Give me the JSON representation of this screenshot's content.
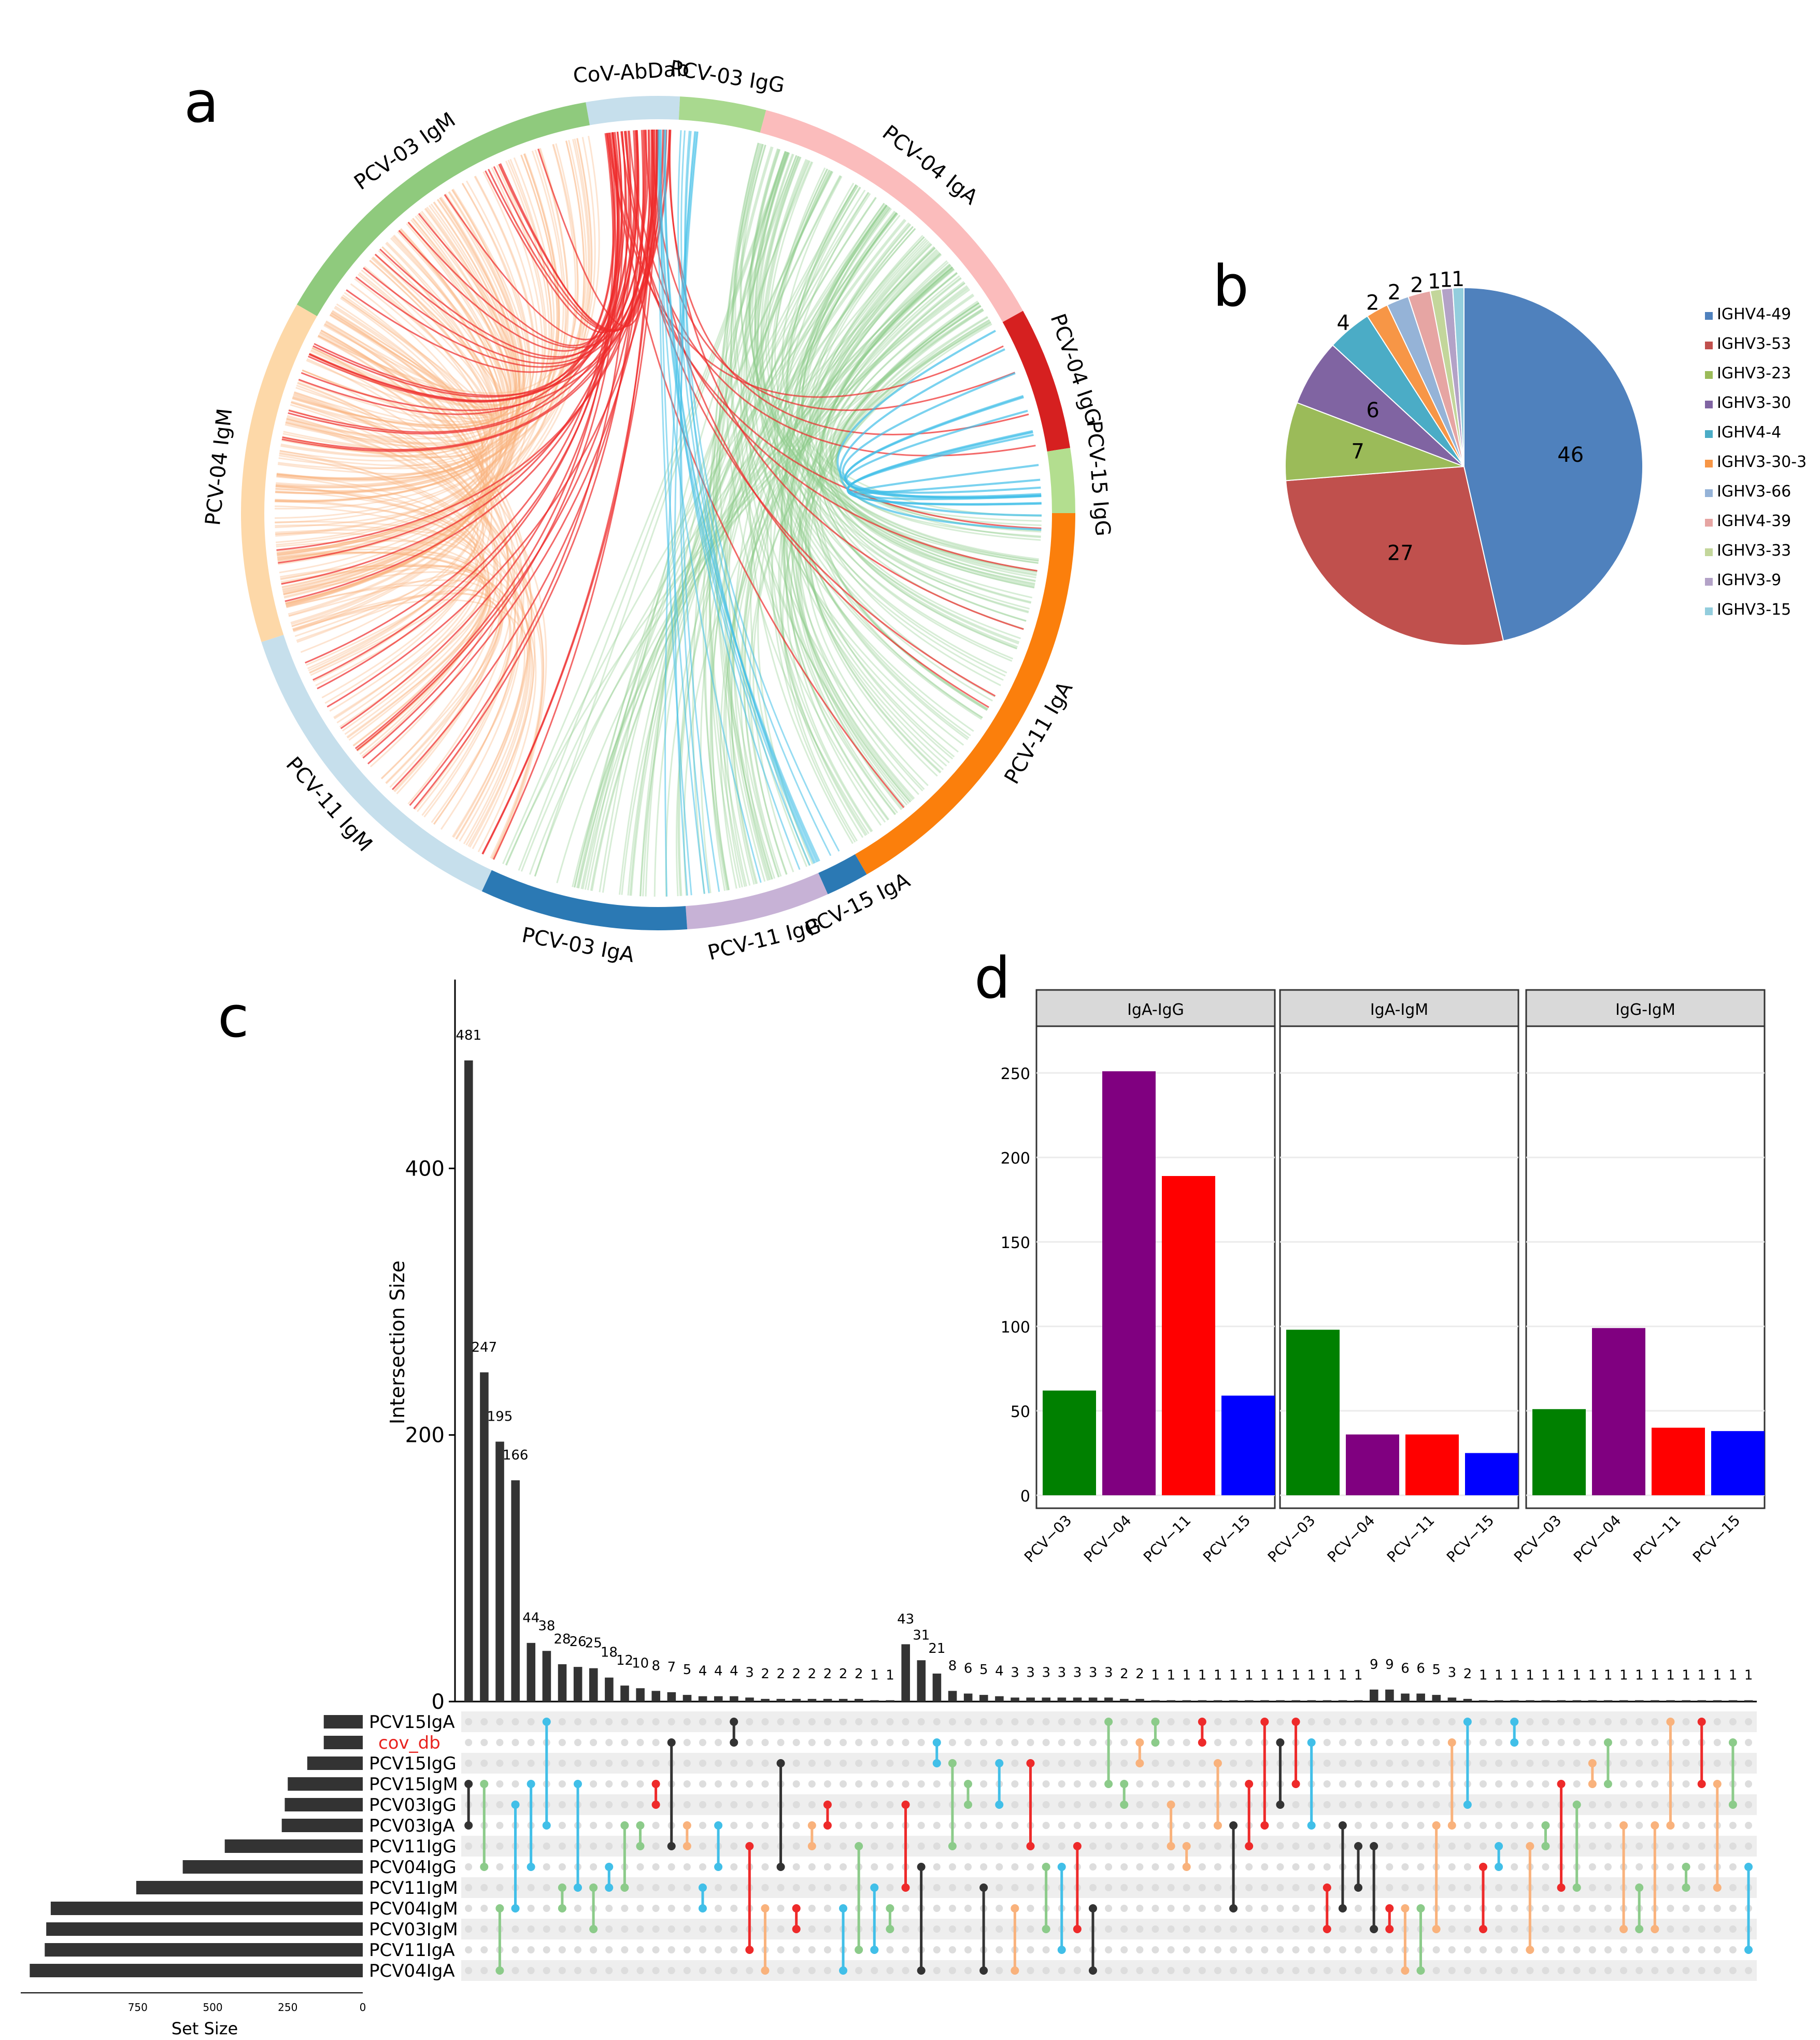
{
  "panel_labels": [
    "a",
    "b",
    "c",
    "d"
  ],
  "colors": {
    "axis": "#000000",
    "bar_dark": "#333333",
    "dot_empty": "#dddddd",
    "stripe": "#eeeeee",
    "strip_bg": "#d9d9d9",
    "grid": "#ebebeb",
    "cov_db_label": "#e8231f"
  },
  "chart_data": [
    {
      "panel": "a",
      "type": "chord",
      "sectors": [
        {
          "label": "CoV-AbDab",
          "color": "#c6dfec"
        },
        {
          "label": "PCV-03 IgG",
          "color": "#a9d98f"
        },
        {
          "label": "PCV-04 IgA",
          "color": "#fbbcbc"
        },
        {
          "label": "PCV-04 IgG",
          "color": "#d62020"
        },
        {
          "label": "PCV-15 IgG",
          "color": "#b3de8f"
        },
        {
          "label": "PCV-11 IgA",
          "color": "#fb7f0c"
        },
        {
          "label": "PCV-15 IgA",
          "color": "#2b79b4"
        },
        {
          "label": "PCV-11 IgG",
          "color": "#c7b2d6"
        },
        {
          "label": "PCV-03 IgA",
          "color": "#2b79b4"
        },
        {
          "label": "PCV-11 IgM",
          "color": "#c6dfec"
        },
        {
          "label": "PCV-04 IgM",
          "color": "#fdd8a8"
        },
        {
          "label": "PCV-03 IgM",
          "color": "#8fca7d"
        }
      ],
      "link_colors": [
        "#f9b27c",
        "#8ccb8a",
        "#ee2a2a",
        "#41bfe8"
      ]
    },
    {
      "panel": "b",
      "type": "pie",
      "categories": [
        "IGHV4-49",
        "IGHV3-53",
        "IGHV3-23",
        "IGHV3-30",
        "IGHV4-4",
        "IGHV3-30-3",
        "IGHV3-66",
        "IGHV4-39",
        "IGHV3-33",
        "IGHV3-9",
        "IGHV3-15"
      ],
      "values": [
        46,
        27,
        7,
        6,
        4,
        2,
        2,
        2,
        1,
        1,
        1
      ],
      "colors": [
        "#4f81bd",
        "#c0504d",
        "#9bbb59",
        "#8064a2",
        "#4bacc6",
        "#f79646",
        "#95b3d7",
        "#e6a5a3",
        "#c3d69b",
        "#b3a2c7",
        "#93cddd"
      ],
      "legend": "right"
    },
    {
      "panel": "c",
      "type": "bar",
      "ylabel": "Intersection Size",
      "ylim": [
        0,
        530
      ],
      "yticks": [
        0,
        200,
        400
      ],
      "values": [
        481,
        247,
        195,
        166,
        44,
        38,
        28,
        26,
        25,
        18,
        12,
        10,
        8,
        7,
        5,
        4,
        4,
        4,
        3,
        2,
        2,
        2,
        2,
        2,
        2,
        2,
        1,
        1,
        43,
        31,
        21,
        8,
        6,
        5,
        4,
        3,
        3,
        3,
        3,
        3,
        3,
        3,
        2,
        2,
        1,
        1,
        1,
        1,
        1,
        1,
        1,
        1,
        1,
        1,
        1,
        1,
        1,
        1,
        9,
        9,
        6,
        6,
        5,
        3,
        2,
        1,
        1,
        1,
        1,
        1,
        1,
        1,
        1,
        1,
        1,
        1,
        1,
        1,
        1,
        1,
        1,
        1,
        1
      ],
      "sets": [
        "PCV15IgA",
        "cov_db",
        "PCV15IgG",
        "PCV15IgM",
        "PCV03IgG",
        "PCV03IgA",
        "PCV11IgG",
        "PCV04IgG",
        "PCV11IgM",
        "PCV04IgM",
        "PCV03IgM",
        "PCV11IgA",
        "PCV04IgA"
      ],
      "set_sizes": [
        130,
        130,
        185,
        250,
        260,
        270,
        460,
        600,
        755,
        1040,
        1055,
        1060,
        1110
      ],
      "set_size_label": "Set Size",
      "set_size_ticks": [
        750,
        500,
        250,
        0
      ],
      "match_colors": [
        "#f9b27c",
        "#8ccb8a",
        "#ee2a2a",
        "#41bfe8",
        "#333333"
      ]
    },
    {
      "panel": "d",
      "type": "bar",
      "facets": [
        "IgA-IgG",
        "IgA-IgM",
        "IgG-IgM"
      ],
      "categories": [
        "PCV−03",
        "PCV−04",
        "PCV−11",
        "PCV−15"
      ],
      "colors": [
        "#008000",
        "#800080",
        "#ff0000",
        "#0000ff"
      ],
      "series": [
        {
          "values": [
            62,
            251,
            189,
            59
          ]
        },
        {
          "values": [
            98,
            36,
            36,
            25
          ]
        },
        {
          "values": [
            51,
            99,
            40,
            38
          ]
        }
      ],
      "ylim": [
        0,
        270
      ],
      "yticks": [
        0,
        50,
        100,
        150,
        200,
        250
      ]
    }
  ]
}
